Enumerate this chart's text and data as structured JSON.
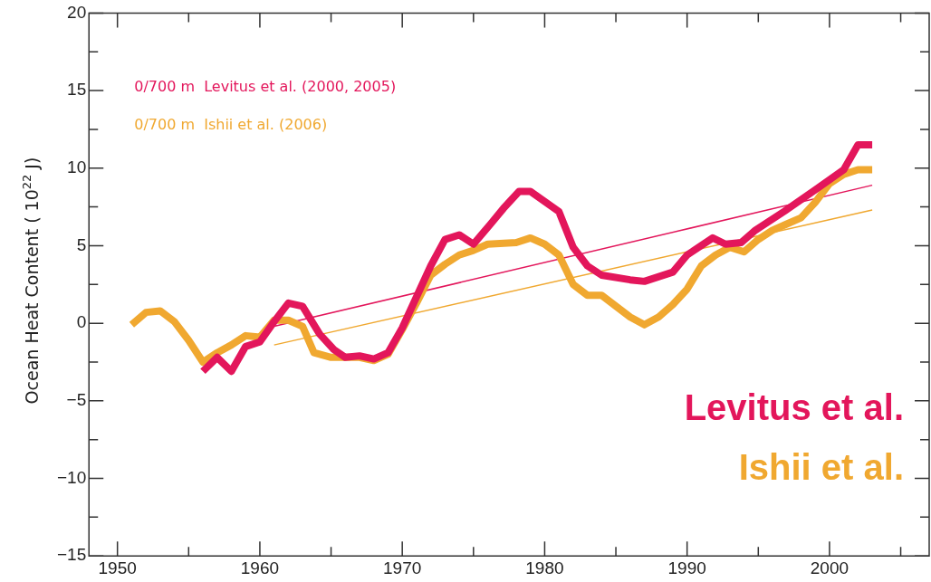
{
  "chart_data": {
    "type": "line",
    "ylabel": "Ocean Heat Content ( 10$^{22}$ J)",
    "xlim": [
      1948,
      2007
    ],
    "xticks": [
      1950,
      {
        "value": 1955,
        "label": null
      },
      1960,
      {
        "value": 1965,
        "label": null
      },
      1970,
      {
        "value": 1975,
        "label": null
      },
      1980,
      {
        "value": 1985,
        "label": null
      },
      1990,
      {
        "value": 1995,
        "label": null
      },
      2000,
      {
        "value": 2005,
        "label": null
      }
    ],
    "ylim": [
      -15,
      20
    ],
    "yticks": [
      -15,
      {
        "value": -12.5,
        "label": null
      },
      -10,
      {
        "value": -7.5,
        "label": null
      },
      -5,
      {
        "value": -2.5,
        "label": null
      },
      0,
      {
        "value": 2.5,
        "label": null
      },
      5,
      {
        "value": 7.5,
        "label": null
      },
      10,
      {
        "value": 12.5,
        "label": null
      },
      15,
      {
        "value": 17.5,
        "label": null
      },
      20
    ],
    "grid": false,
    "legend": "top left",
    "marker": "none",
    "line_style": "solid",
    "annotations": [
      "Levitus et al.",
      "Ishii et al."
    ],
    "series": [
      {
        "name": "0/700 m  Levitus et al. (2000, 2005)",
        "color": "#e3165b",
        "x": [
          1956,
          1957,
          1958,
          1959,
          1960,
          1961,
          1962,
          1963,
          1964.2,
          1965.2,
          1966,
          1967,
          1968,
          1969,
          1970,
          1971,
          1972,
          1973,
          1974,
          1975,
          1976.2,
          1977.1,
          1978.2,
          1979,
          1981,
          1982,
          1983,
          1984,
          1986,
          1987,
          1989,
          1990,
          1991.8,
          1992.7,
          1993.8,
          1994.8,
          1996.8,
          1999,
          2001,
          2002,
          2003
        ],
        "values": [
          -3.1,
          -2.2,
          -3.1,
          -1.5,
          -1.2,
          0.1,
          1.3,
          1.1,
          -0.7,
          -1.7,
          -2.2,
          -2.1,
          -2.3,
          -1.9,
          -0.3,
          1.7,
          3.7,
          5.4,
          5.7,
          5.1,
          6.4,
          7.4,
          8.5,
          8.5,
          7.2,
          4.9,
          3.7,
          3.1,
          2.8,
          2.7,
          3.3,
          4.4,
          5.5,
          5.1,
          5.2,
          6.0,
          7.2,
          8.6,
          9.9,
          11.5,
          11.5
        ]
      },
      {
        "name": "0/700 m  Ishii et al. (2006)",
        "color": "#f0a830",
        "x": [
          1951,
          1952,
          1953,
          1954,
          1955,
          1956,
          1957,
          1958,
          1959,
          1960,
          1961,
          1962,
          1963,
          1963.8,
          1965,
          1967,
          1968,
          1969,
          1970,
          1971,
          1972,
          1973,
          1974,
          1975,
          1976,
          1978,
          1979,
          1980,
          1981,
          1982,
          1983,
          1984,
          1985,
          1986,
          1987,
          1988,
          1989,
          1990,
          1991,
          1992,
          1993,
          1994,
          1995,
          1996,
          1997,
          1998,
          1999,
          2000,
          2001,
          2002,
          2003
        ],
        "values": [
          -0.1,
          0.7,
          0.8,
          0.1,
          -1.1,
          -2.5,
          -1.9,
          -1.4,
          -0.8,
          -0.9,
          0.2,
          0.2,
          -0.2,
          -1.9,
          -2.2,
          -2.2,
          -2.4,
          -2.0,
          -0.4,
          1.3,
          3.1,
          3.8,
          4.4,
          4.7,
          5.1,
          5.2,
          5.5,
          5.1,
          4.4,
          2.5,
          1.8,
          1.8,
          1.1,
          0.4,
          -0.1,
          0.4,
          1.2,
          2.2,
          3.7,
          4.4,
          4.9,
          4.6,
          5.4,
          6.0,
          6.4,
          6.8,
          7.8,
          9.0,
          9.6,
          9.9,
          9.9
        ]
      },
      {
        "color": "#e3165b",
        "x": [
          1961,
          2003
        ],
        "values": [
          -0.2,
          8.9
        ]
      },
      {
        "color": "#f0a830",
        "x": [
          1961,
          2003
        ],
        "values": [
          -1.4,
          7.3
        ]
      }
    ]
  }
}
